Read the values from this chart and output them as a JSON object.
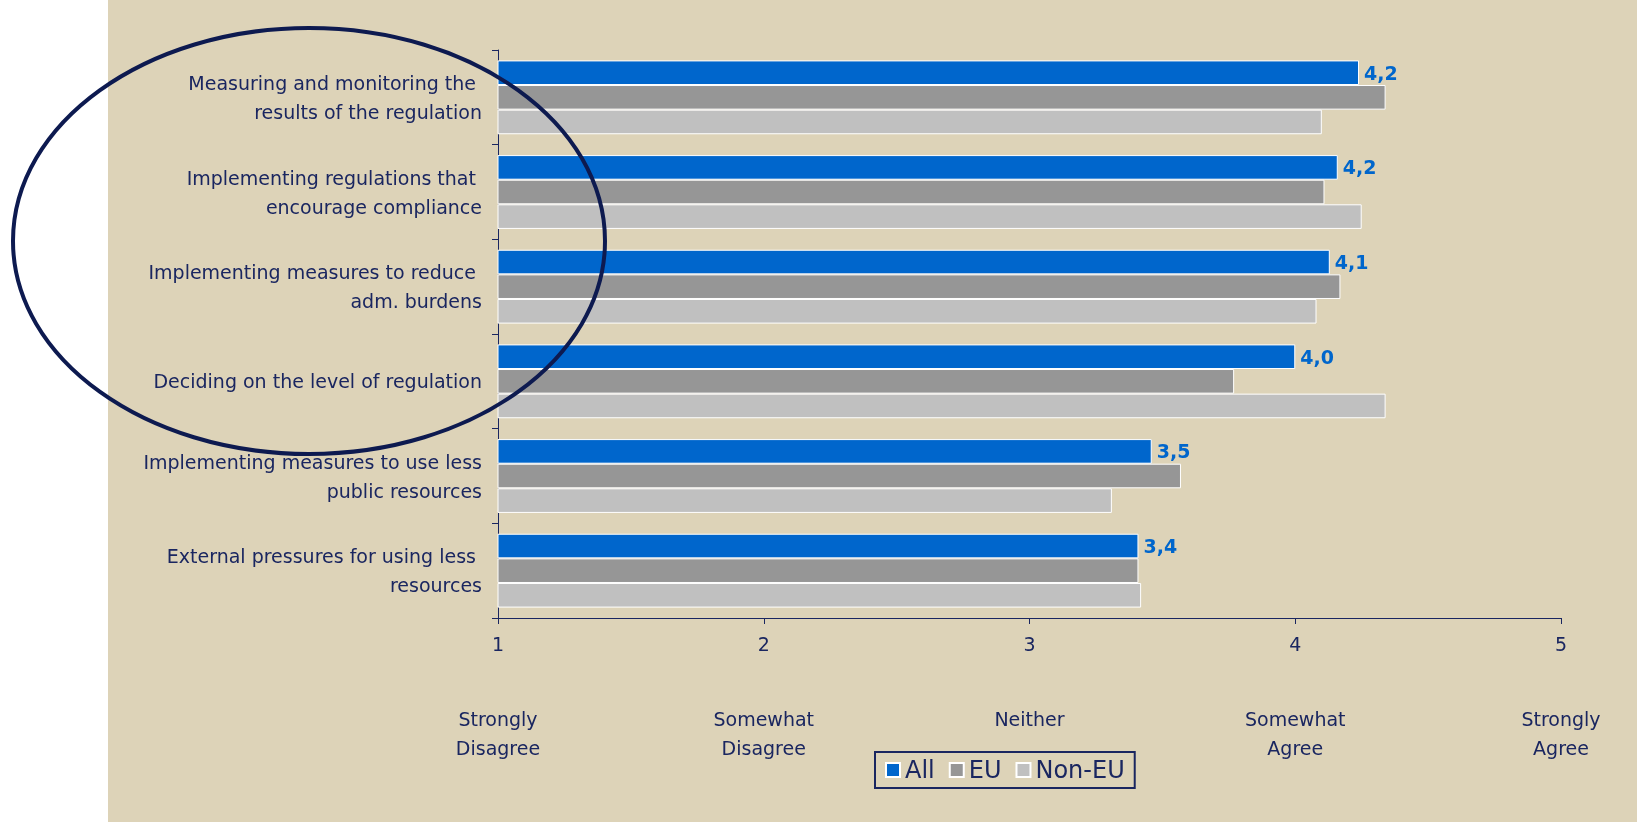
{
  "chart_data": {
    "type": "bar",
    "orientation": "horizontal",
    "categories": [
      "Measuring and monitoring the results of the regulation",
      "Implementing regulations that encourage compliance",
      "Implementing measures to reduce adm. burdens",
      "Deciding on the level of regulation",
      "Implementing measures to use less public resources",
      "External pressures for using less resources"
    ],
    "series": [
      {
        "name": "All",
        "color": "#0066cc",
        "values": [
          4.24,
          4.16,
          4.13,
          4.0,
          3.46,
          3.41
        ],
        "value_labels": [
          "4,2",
          "4,2",
          "4,1",
          "4,0",
          "3,5",
          "3,4"
        ]
      },
      {
        "name": "EU",
        "color": "#969696",
        "values": [
          4.34,
          4.11,
          4.17,
          3.77,
          3.57,
          3.41
        ]
      },
      {
        "name": "Non-EU",
        "color": "#c0c0c0",
        "values": [
          4.1,
          4.25,
          4.08,
          4.34,
          3.31,
          3.42
        ]
      }
    ],
    "xlim": [
      1,
      5
    ],
    "xticks": [
      1,
      2,
      3,
      4,
      5
    ],
    "annotations": [
      "Strongly\nDisagree",
      "Somewhat\nDisagree",
      "Neither",
      "Somewhat\nAgree",
      "Strongly\nAgree"
    ],
    "grid": false,
    "legend": "bottom"
  }
}
